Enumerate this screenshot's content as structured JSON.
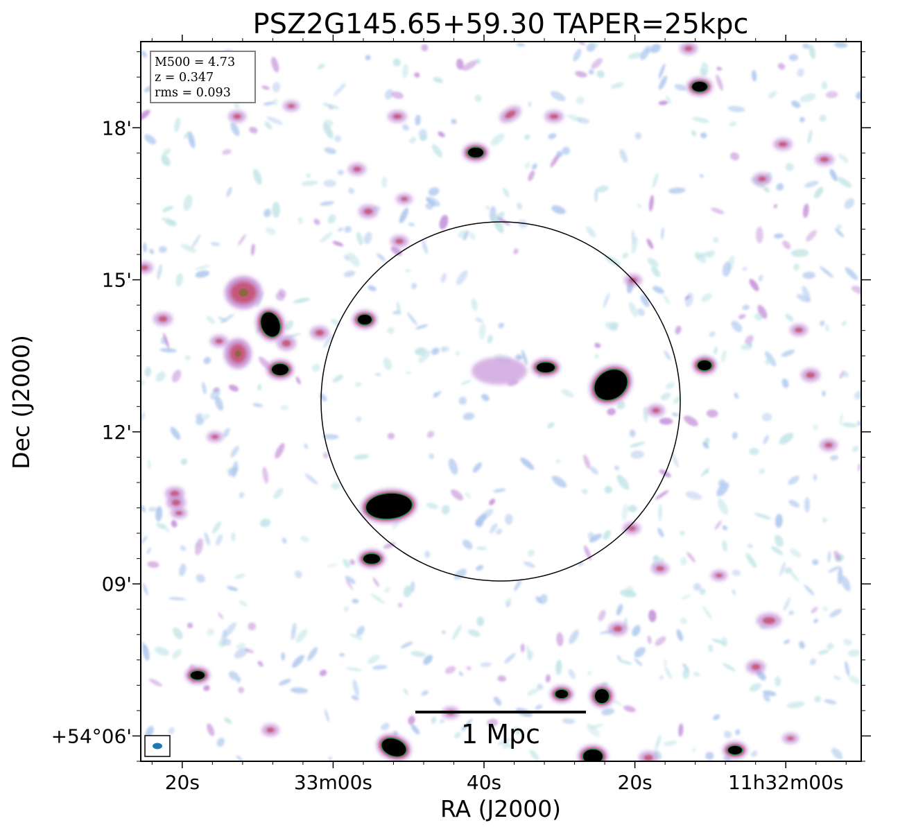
{
  "chart_data": {
    "type": "heatmap",
    "title": "PSZ2G145.65+59.30 TAPER=25kpc",
    "xlabel": "RA (J2000)",
    "ylabel": "Dec (J2000)",
    "x_ticks": [
      "20s",
      "33m00s",
      "40s",
      "20s",
      "11h32m00s"
    ],
    "y_ticks": [
      "18'",
      "15'",
      "12'",
      "09'",
      "+54°06'"
    ],
    "x_tick_offsets_s": [
      -64,
      -44,
      -24,
      -4,
      16
    ],
    "y_tick_values_arcmin": [
      18,
      15,
      12,
      9,
      6
    ],
    "x_range_s": [
      -69.5,
      26.0
    ],
    "y_range_arcmin": [
      5.5,
      19.7
    ],
    "info_box": {
      "m500": "M500 = 4.73",
      "z": "z = 0.347",
      "rms": "rms = 0.093"
    },
    "scale_bar_label": "1 Mpc",
    "colors": {
      "faint": "#a9c4ec",
      "faint_cyan": "#bfe3e6",
      "moderate": "#c08ad6",
      "strong": "#c4506e",
      "bright_edge": "#2e8b57",
      "peak": "#000000",
      "beam": "#1f77b4"
    }
  }
}
